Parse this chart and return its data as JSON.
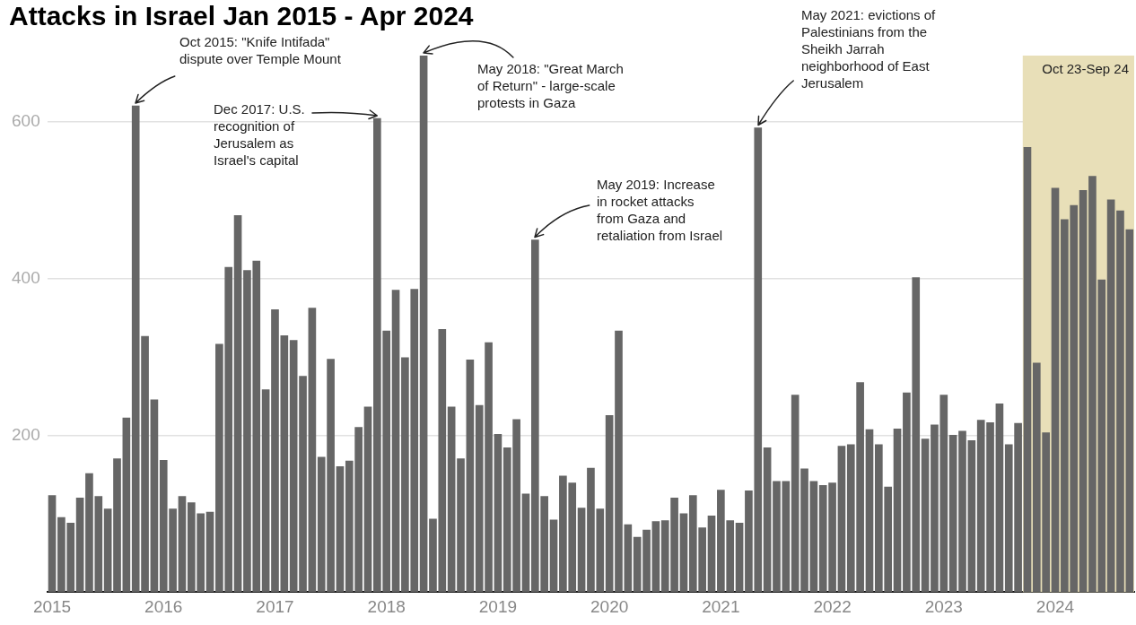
{
  "chart_data": {
    "type": "bar",
    "title": "Attacks in Israel Jan 2015 - Apr 2024",
    "color": "#666666",
    "x": [
      "2015-01",
      "2015-02",
      "2015-03",
      "2015-04",
      "2015-05",
      "2015-06",
      "2015-07",
      "2015-08",
      "2015-09",
      "2015-10",
      "2015-11",
      "2015-12",
      "2016-01",
      "2016-02",
      "2016-03",
      "2016-04",
      "2016-05",
      "2016-06",
      "2016-07",
      "2016-08",
      "2016-09",
      "2016-10",
      "2016-11",
      "2016-12",
      "2017-01",
      "2017-02",
      "2017-03",
      "2017-04",
      "2017-05",
      "2017-06",
      "2017-07",
      "2017-08",
      "2017-09",
      "2017-10",
      "2017-11",
      "2017-12",
      "2018-01",
      "2018-02",
      "2018-03",
      "2018-04",
      "2018-05",
      "2018-06",
      "2018-07",
      "2018-08",
      "2018-09",
      "2018-10",
      "2018-11",
      "2018-12",
      "2019-01",
      "2019-02",
      "2019-03",
      "2019-04",
      "2019-05",
      "2019-06",
      "2019-07",
      "2019-08",
      "2019-09",
      "2019-10",
      "2019-11",
      "2019-12",
      "2020-01",
      "2020-02",
      "2020-03",
      "2020-04",
      "2020-05",
      "2020-06",
      "2020-07",
      "2020-08",
      "2020-09",
      "2020-10",
      "2020-11",
      "2020-12",
      "2021-01",
      "2021-02",
      "2021-03",
      "2021-04",
      "2021-05",
      "2021-06",
      "2021-07",
      "2021-08",
      "2021-09",
      "2021-10",
      "2021-11",
      "2021-12",
      "2022-01",
      "2022-02",
      "2022-03",
      "2022-04",
      "2022-05",
      "2022-06",
      "2022-07",
      "2022-08",
      "2022-09",
      "2022-10",
      "2022-11",
      "2022-12",
      "2023-01",
      "2023-02",
      "2023-03",
      "2023-04",
      "2023-05",
      "2023-06",
      "2023-07",
      "2023-08",
      "2023-09",
      "2023-10",
      "2023-11",
      "2023-12",
      "2024-01",
      "2024-02",
      "2024-03",
      "2024-04",
      "2024-05",
      "2024-06",
      "2024-07",
      "2024-08",
      "2024-09"
    ],
    "values": [
      123,
      95,
      88,
      120,
      151,
      122,
      106,
      170,
      222,
      620,
      326,
      245,
      168,
      106,
      122,
      114,
      100,
      102,
      316,
      414,
      480,
      410,
      422,
      258,
      360,
      327,
      321,
      275,
      362,
      172,
      297,
      160,
      167,
      210,
      236,
      604,
      333,
      385,
      299,
      386,
      684,
      93,
      335,
      236,
      170,
      296,
      238,
      318,
      201,
      184,
      220,
      125,
      449,
      122,
      92,
      148,
      139,
      107,
      158,
      106,
      225,
      333,
      86,
      70,
      79,
      90,
      91,
      120,
      100,
      123,
      82,
      97,
      130,
      91,
      88,
      129,
      592,
      184,
      141,
      141,
      251,
      157,
      141,
      136,
      139,
      186,
      188,
      267,
      207,
      188,
      134,
      208,
      254,
      401,
      195,
      213,
      251,
      200,
      205,
      193,
      219,
      216,
      240,
      188,
      215,
      567,
      292,
      203,
      515,
      475,
      493,
      512,
      530,
      398,
      500,
      486,
      462
    ],
    "xlim": [
      "2014-12-16",
      "2024-09-16"
    ],
    "xticks": [
      {
        "value": "2015-01",
        "label": "2015"
      },
      {
        "value": "2016-01",
        "label": "2016"
      },
      {
        "value": "2017-01",
        "label": "2017"
      },
      {
        "value": "2018-01",
        "label": "2018"
      },
      {
        "value": "2019-01",
        "label": "2019"
      },
      {
        "value": "2020-01",
        "label": "2020"
      },
      {
        "value": "2021-01",
        "label": "2021"
      },
      {
        "value": "2022-01",
        "label": "2022"
      },
      {
        "value": "2023-01",
        "label": "2023"
      },
      {
        "value": "2024-01",
        "label": "2024"
      }
    ],
    "ylim": [
      0,
      684
    ],
    "yticks": [
      200,
      400,
      600
    ],
    "grid": "y",
    "legend": false,
    "bands": [
      {
        "axis": "x",
        "from": "2023-09-16",
        "to": "2024-09-16",
        "label": "Oct 23-Sep 24",
        "color": "#e8dfb8"
      }
    ],
    "annotations": [
      {
        "text": "Oct 2015: \"Knife Intifada\"\ndispute over Temple Mount",
        "x": "2015-10",
        "y": 620
      },
      {
        "text": "Dec 2017: U.S.\nrecognition of\nJerusalem as\nIsrael's capital",
        "x": "2017-12",
        "y": 604
      },
      {
        "text": "May 2018: \"Great March\nof Return\" - large-scale\nprotests in Gaza",
        "x": "2018-05",
        "y": 684
      },
      {
        "text": "May 2019: Increase\nin rocket attacks\nfrom Gaza and\nretaliation from Israel",
        "x": "2019-05",
        "y": 449
      },
      {
        "text": "May 2021: evictions of\nPalestinians from the\nSheikh Jarrah\nneighborhood of East\nJerusalem",
        "x": "2021-05",
        "y": 592
      }
    ]
  }
}
